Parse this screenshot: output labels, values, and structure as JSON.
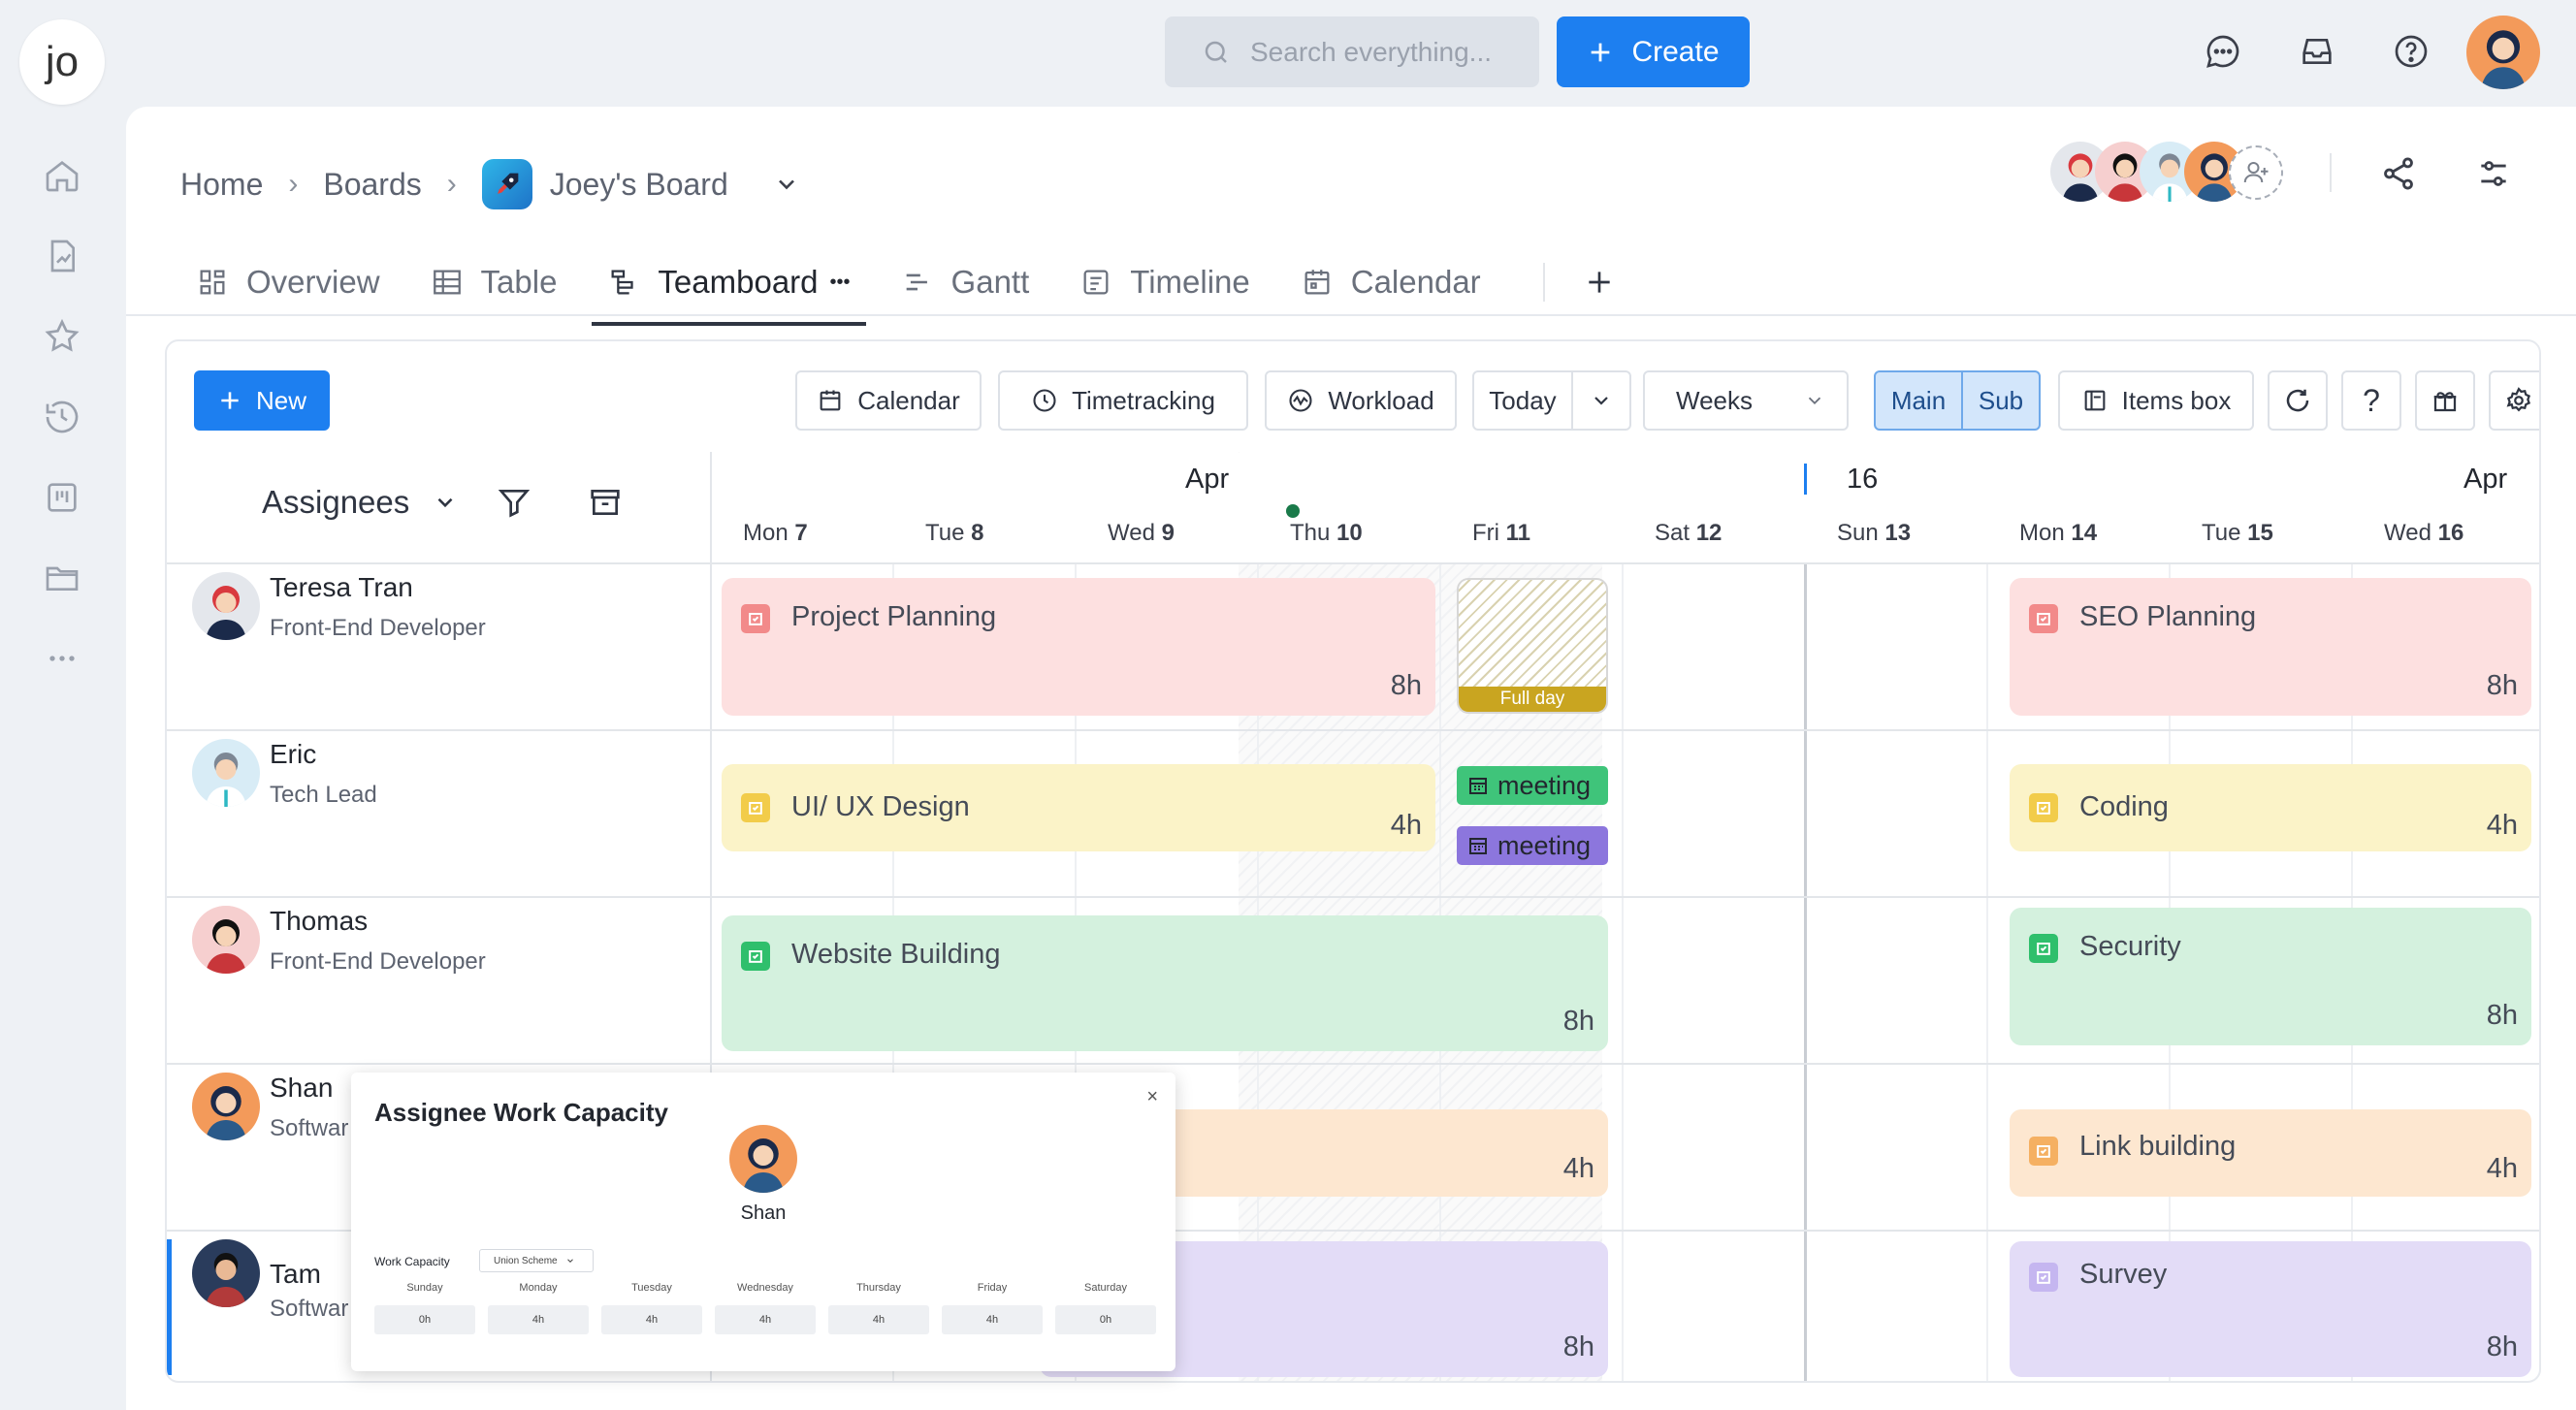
{
  "app": {
    "logo_text": "jo"
  },
  "topbar": {
    "search_placeholder": "Search everything...",
    "create_label": "Create"
  },
  "breadcrumb": {
    "home": "Home",
    "boards": "Boards",
    "board": "Joey's Board"
  },
  "tabs": [
    {
      "label": "Overview"
    },
    {
      "label": "Table"
    },
    {
      "label": "Teamboard",
      "more": "•••"
    },
    {
      "label": "Gantt"
    },
    {
      "label": "Timeline"
    },
    {
      "label": "Calendar"
    }
  ],
  "toolbar": {
    "new_label": "New",
    "calendar_label": "Calendar",
    "timetracking_label": "Timetracking",
    "workload_label": "Workload",
    "today_label": "Today",
    "weeks_label": "Weeks",
    "main_label": "Main",
    "sub_label": "Sub",
    "items_box_label": "Items box",
    "help_label": "?"
  },
  "grid": {
    "assignees_label": "Assignees",
    "month_left": "Apr",
    "month_right": "Apr",
    "week_marker": "16",
    "days": [
      {
        "name": "Mon",
        "num": "7"
      },
      {
        "name": "Tue",
        "num": "8"
      },
      {
        "name": "Wed",
        "num": "9"
      },
      {
        "name": "Thu",
        "num": "10"
      },
      {
        "name": "Fri",
        "num": "11"
      },
      {
        "name": "Sat",
        "num": "12"
      },
      {
        "name": "Sun",
        "num": "13"
      },
      {
        "name": "Mon",
        "num": "14"
      },
      {
        "name": "Tue",
        "num": "15"
      },
      {
        "name": "Wed",
        "num": "16"
      }
    ]
  },
  "people": [
    {
      "name": "Teresa Tran",
      "role": "Front-End Developer"
    },
    {
      "name": "Eric",
      "role": "Tech Lead"
    },
    {
      "name": "Thomas",
      "role": "Front-End Developer"
    },
    {
      "name": "Shan",
      "role": "Softwar"
    },
    {
      "name": "Tam",
      "role": "Softwar"
    }
  ],
  "tasks": {
    "project_planning": {
      "name": "Project Planning",
      "hours": "8h"
    },
    "full_day": {
      "label": "Full day"
    },
    "seo_planning": {
      "name": "SEO Planning",
      "hours": "8h"
    },
    "ui_ux": {
      "name": "UI/ UX Design",
      "hours": "4h"
    },
    "meeting1": {
      "name": "meeting"
    },
    "meeting2": {
      "name": "meeting"
    },
    "coding": {
      "name": "Coding",
      "hours": "4h"
    },
    "website": {
      "name": "Website Building",
      "hours": "8h"
    },
    "security": {
      "name": "Security",
      "hours": "8h"
    },
    "shan_task": {
      "hours": "4h"
    },
    "link_building": {
      "name": "Link building",
      "hours": "4h"
    },
    "tam_task": {
      "hours": "8h"
    },
    "survey": {
      "name": "Survey",
      "hours": "8h"
    }
  },
  "colors": {
    "pink": "#fde0e0",
    "yellow": "#fbf3c8",
    "green": "#d4f1de",
    "peach": "#fde7d0",
    "purple": "#e3dcf7",
    "accent": "#1d7ff0"
  },
  "popup": {
    "title": "Assignee Work Capacity",
    "close": "×",
    "person_name": "Shan",
    "capacity_label": "Work Capacity",
    "scheme": "Union Scheme",
    "days": [
      {
        "label": "Sunday",
        "value": "0h"
      },
      {
        "label": "Monday",
        "value": "4h"
      },
      {
        "label": "Tuesday",
        "value": "4h"
      },
      {
        "label": "Wednesday",
        "value": "4h"
      },
      {
        "label": "Thursday",
        "value": "4h"
      },
      {
        "label": "Friday",
        "value": "4h"
      },
      {
        "label": "Saturday",
        "value": "0h"
      }
    ]
  }
}
